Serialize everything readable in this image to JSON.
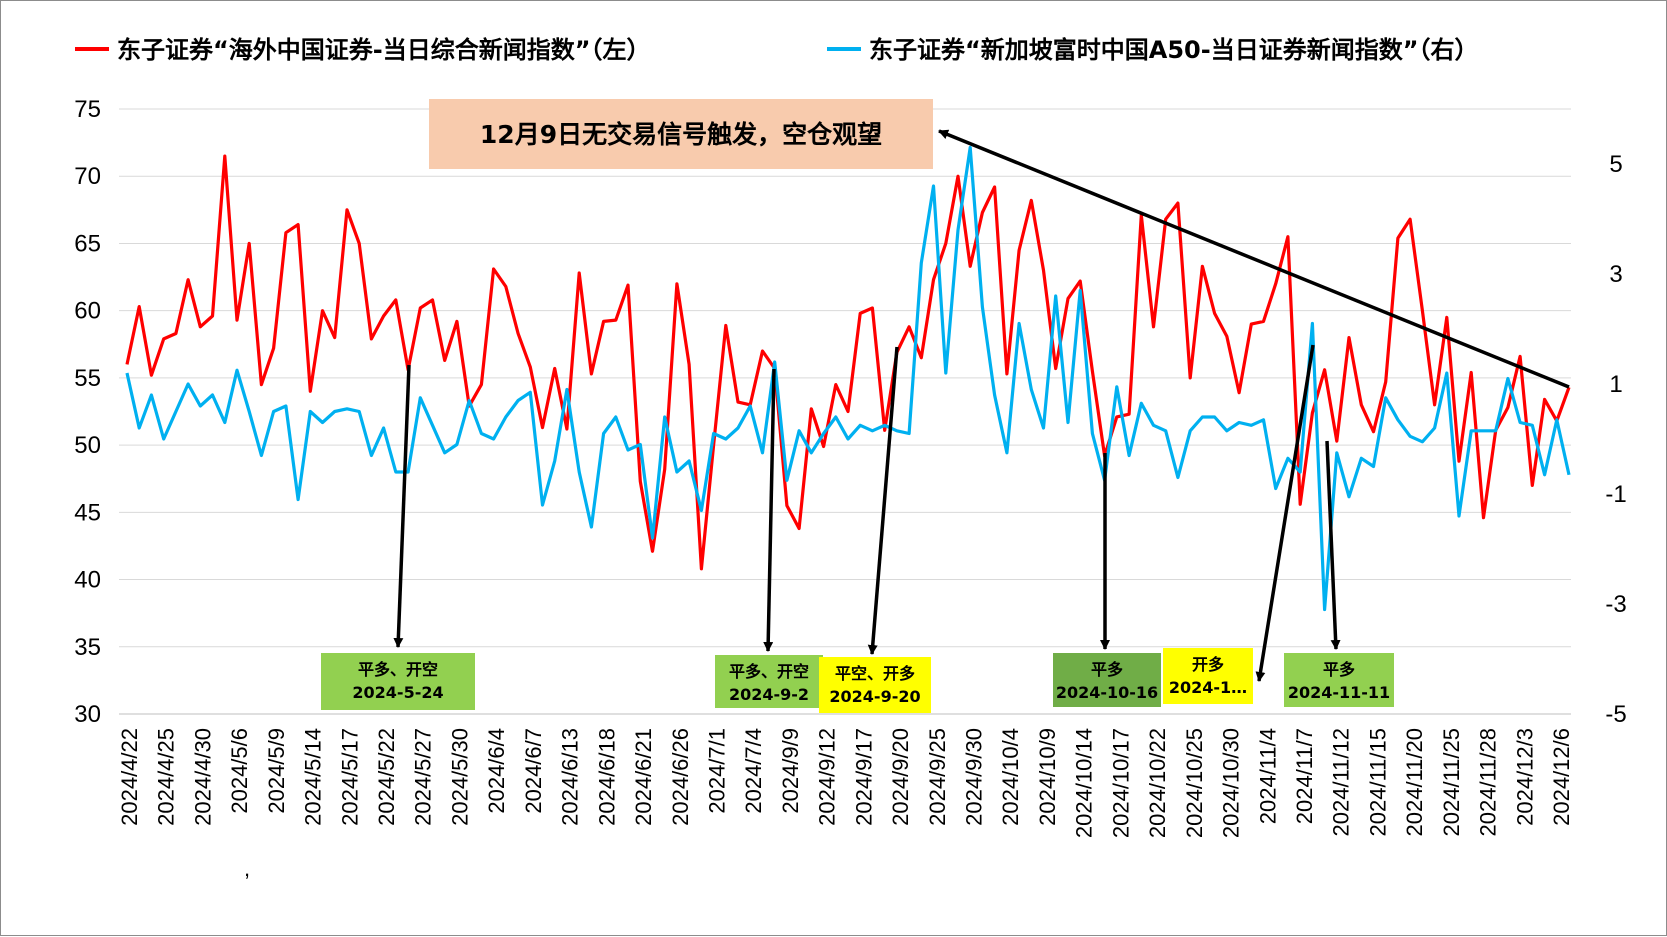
{
  "chart_data": {
    "type": "line",
    "legend": [
      {
        "label": "东子证券“海外中国证券-当日综合新闻指数”（左）",
        "color": "#ff0000"
      },
      {
        "label": "东子证券“新加坡富时中国A50-当日证券新闻指数”（右）",
        "color": "#00b0f0"
      }
    ],
    "left_axis": {
      "ticks": [
        "75",
        "70",
        "65",
        "60",
        "55",
        "50",
        "45",
        "40",
        "35",
        "30"
      ],
      "ylim": [
        30,
        75
      ]
    },
    "right_axis": {
      "ticks": [
        "5",
        "3",
        "1",
        "-1",
        "-3",
        "-5"
      ],
      "ylim": [
        -5,
        6
      ]
    },
    "x_tick_labels": [
      "2024/4/22",
      "2024/4/25",
      "2024/4/30",
      "2024/5/6",
      "2024/5/9",
      "2024/5/14",
      "2024/5/17",
      "2024/5/22",
      "2024/5/27",
      "2024/5/30",
      "2024/6/4",
      "2024/6/7",
      "2024/6/13",
      "2024/6/18",
      "2024/6/21",
      "2024/6/26",
      "2024/7/1",
      "2024/7/4",
      "2024/9/9",
      "2024/9/12",
      "2024/9/17",
      "2024/9/20",
      "2024/9/25",
      "2024/9/30",
      "2024/10/4",
      "2024/10/9",
      "2024/10/14",
      "2024/10/17",
      "2024/10/22",
      "2024/10/25",
      "2024/10/30",
      "2024/11/4",
      "2024/11/7",
      "2024/11/12",
      "2024/11/15",
      "2024/11/20",
      "2024/11/25",
      "2024/11/28",
      "2024/12/3",
      "2024/12/6"
    ],
    "stray_mark": ",",
    "series": [
      {
        "name": "东子证券“海外中国证券-当日综合新闻指数”（左）",
        "axis": "left",
        "color": "#ff0000",
        "values": [
          56,
          60.3,
          55.2,
          57.9,
          58.3,
          62.3,
          58.8,
          59.6,
          71.5,
          59.3,
          65,
          54.5,
          57.2,
          65.8,
          66.4,
          54,
          60,
          58,
          67.5,
          65,
          57.9,
          59.6,
          60.8,
          55.6,
          60.2,
          60.8,
          56.3,
          59.2,
          52.9,
          54.5,
          63.1,
          61.8,
          58.3,
          55.8,
          51.3,
          55.7,
          51.2,
          62.8,
          55.3,
          59.2,
          59.3,
          61.9,
          47.3,
          42.1,
          48.2,
          62,
          56,
          40.8,
          50,
          58.9,
          53.2,
          53,
          57,
          55.7,
          45.5,
          43.8,
          52.7,
          49.9,
          54.5,
          52.5,
          59.8,
          60.2,
          51.1,
          56.9,
          58.8,
          56.5,
          62.3,
          65,
          70,
          63.3,
          67.3,
          69.2,
          55.3,
          64.5,
          68.2,
          63,
          55.7,
          60.9,
          62.2,
          55.5,
          49.2,
          52.1,
          52.3,
          67.1,
          58.8,
          66.8,
          68,
          55,
          63.3,
          59.8,
          58.1,
          53.9,
          59,
          59.2,
          62,
          65.5,
          45.6,
          52.4,
          55.6,
          50.3,
          58,
          53,
          51,
          54.7,
          65.4,
          66.8,
          60,
          53,
          59.5,
          48.8,
          55.4,
          44.6,
          51.1,
          52.8,
          56.6,
          47,
          53.4,
          51.8,
          54.3
        ]
      },
      {
        "name": "东子证券“新加坡富时中国A50-当日证券新闻指数”（右）",
        "axis": "right",
        "color": "#00b0f0",
        "values": [
          1.2,
          0.2,
          0.8,
          0,
          0.5,
          1,
          0.6,
          0.8,
          0.3,
          1.25,
          0.5,
          -0.3,
          0.5,
          0.6,
          -1.1,
          0.5,
          0.3,
          0.5,
          0.55,
          0.5,
          -0.3,
          0.2,
          -0.6,
          -0.6,
          0.75,
          0.25,
          -0.25,
          -0.1,
          0.7,
          0.1,
          0,
          0.4,
          0.7,
          0.85,
          -1.2,
          -0.4,
          0.9,
          -0.6,
          -1.6,
          0.1,
          0.4,
          -0.2,
          -0.1,
          -1.8,
          0.4,
          -0.6,
          -0.4,
          -1.3,
          0.1,
          0,
          0.2,
          0.6,
          -0.25,
          1.4,
          -0.75,
          0.15,
          -0.25,
          0.1,
          0.4,
          0,
          0.25,
          0.15,
          0.25,
          0.15,
          0.1,
          3.2,
          4.6,
          1.2,
          3.8,
          5.3,
          2.4,
          0.8,
          -0.25,
          2.1,
          0.9,
          0.2,
          2.6,
          0.3,
          2.7,
          0.1,
          -0.75,
          0.95,
          -0.3,
          0.65,
          0.25,
          0.15,
          -0.7,
          0.15,
          0.4,
          0.4,
          0.15,
          0.3,
          0.25,
          0.35,
          -0.9,
          -0.35,
          -0.6,
          2.1,
          -3.1,
          -0.25,
          -1.05,
          -0.35,
          -0.5,
          0.75,
          0.35,
          0.05,
          -0.05,
          0.2,
          1.2,
          -1.4,
          0.15,
          0.15,
          0.15,
          1.1,
          0.3,
          0.25,
          -0.65,
          0.35,
          -0.65
        ]
      }
    ],
    "callout": {
      "text": "12月9日无交易信号触发，空仓观望",
      "bg": "#f8cbad"
    },
    "signals": [
      {
        "line1": "平多、开空",
        "line2": "2024-5-24",
        "bg": "#92d050"
      },
      {
        "line1": "平多、开空",
        "line2": "2024-9-2",
        "bg": "#92d050"
      },
      {
        "line1": "平空、开多",
        "line2": "2024-9-20",
        "bg": "#ffff00"
      },
      {
        "line1": "平多",
        "line2": "2024-10-16",
        "bg": "#70ad47"
      },
      {
        "line1": "开多",
        "line2": "2024-1…",
        "bg": "#ffff00"
      },
      {
        "line1": "平多",
        "line2": "2024-11-11",
        "bg": "#92d050"
      }
    ],
    "grid": true
  }
}
